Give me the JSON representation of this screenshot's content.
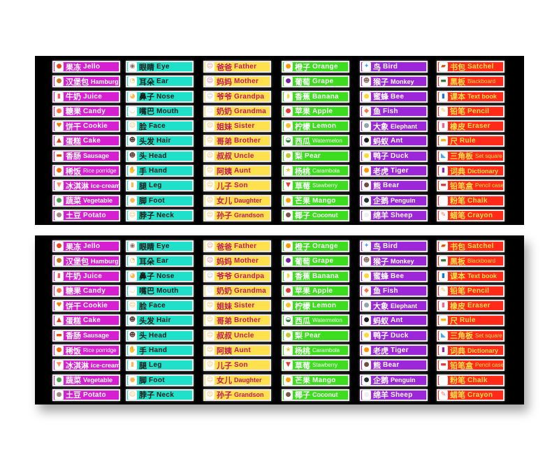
{
  "panels": [
    "top",
    "bottom"
  ],
  "columns": [
    {
      "bg": "#d61fd0",
      "fg": "#ffffff",
      "items": [
        {
          "icon": "jelly-icon",
          "glyph": "●",
          "ic": "#e64a19",
          "zh": "果冻",
          "en": "Jello"
        },
        {
          "icon": "hamburger-icon",
          "glyph": "●",
          "ic": "#c77a1a",
          "zh": "汉堡包",
          "en": "Hamburg",
          "size": "mid"
        },
        {
          "icon": "milk-icon",
          "glyph": "▮",
          "ic": "#ff5a5a",
          "zh": "牛奶",
          "en": "Juice"
        },
        {
          "icon": "candy-icon",
          "glyph": "●",
          "ic": "#ff7043",
          "zh": "糖果",
          "en": "Candy"
        },
        {
          "icon": "cookie-icon",
          "glyph": "♥",
          "ic": "#f57c00",
          "zh": "饼干",
          "en": "Cookie"
        },
        {
          "icon": "cake-icon",
          "glyph": "▲",
          "ic": "#d84315",
          "zh": "蛋糕",
          "en": "Cake"
        },
        {
          "icon": "sausage-icon",
          "glyph": "▬",
          "ic": "#e65100",
          "zh": "香肠",
          "en": "Sausage",
          "size": "mid"
        },
        {
          "icon": "rice-porridge-icon",
          "glyph": "●",
          "ic": "#ef6c00",
          "zh": "稀饭",
          "en": "Rice porridge",
          "size": "small"
        },
        {
          "icon": "ice-cream-icon",
          "glyph": "▼",
          "ic": "#ff8a65",
          "zh": "冰淇淋",
          "en": "ice-cream",
          "size": "mid"
        },
        {
          "icon": "vegetable-icon",
          "glyph": "●",
          "ic": "#43a047",
          "zh": "蔬菜",
          "en": "Vegetable",
          "size": "mid"
        },
        {
          "icon": "potato-icon",
          "glyph": "●",
          "ic": "#a1887f",
          "zh": "土豆",
          "en": "Potato"
        }
      ]
    },
    {
      "bg": "#1fe0c8",
      "fg": "#1a1a1a",
      "items": [
        {
          "icon": "eye-icon",
          "glyph": "◉",
          "ic": "#8d6e63",
          "zh": "眼睛",
          "en": "Eye"
        },
        {
          "icon": "ear-icon",
          "glyph": "◔",
          "ic": "#ffb74d",
          "zh": "耳朵",
          "en": "Ear"
        },
        {
          "icon": "nose-icon",
          "glyph": "◕",
          "ic": "#ffb74d",
          "zh": "鼻子",
          "en": "Nose"
        },
        {
          "icon": "mouth-icon",
          "glyph": "◡",
          "ic": "#ffb74d",
          "zh": "嘴巴",
          "en": "Mouth"
        },
        {
          "icon": "face-icon",
          "glyph": "☺",
          "ic": "#ffb74d",
          "zh": "脸",
          "en": "Face"
        },
        {
          "icon": "hair-icon",
          "glyph": "☻",
          "ic": "#5d4037",
          "zh": "头发",
          "en": "Hair"
        },
        {
          "icon": "head-icon",
          "glyph": "☻",
          "ic": "#5d4037",
          "zh": "头",
          "en": "Head"
        },
        {
          "icon": "hand-icon",
          "glyph": "✋",
          "ic": "#ffb74d",
          "zh": "手",
          "en": "Hand"
        },
        {
          "icon": "leg-icon",
          "glyph": "▮",
          "ic": "#ffb74d",
          "zh": "腿",
          "en": "Leg"
        },
        {
          "icon": "foot-icon",
          "glyph": "●",
          "ic": "#ffb74d",
          "zh": "脚",
          "en": "Foot"
        },
        {
          "icon": "neck-icon",
          "glyph": "☺",
          "ic": "#ffb74d",
          "zh": "脖子",
          "en": "Neck"
        }
      ]
    },
    {
      "bg": "#ffe14d",
      "fg": "#c2185b",
      "items": [
        {
          "icon": "father-icon",
          "glyph": "☺",
          "ic": "#ff8a65",
          "zh": "爸爸",
          "en": "Father"
        },
        {
          "icon": "mother-icon",
          "glyph": "☺",
          "ic": "#f06292",
          "zh": "妈妈",
          "en": "Mother"
        },
        {
          "icon": "grandpa-icon",
          "glyph": "☺",
          "ic": "#bdbdbd",
          "zh": "爷爷",
          "en": "Grandpa"
        },
        {
          "icon": "grandma-icon",
          "glyph": "☺",
          "ic": "#e0e0e0",
          "zh": "奶奶",
          "en": "Grandma"
        },
        {
          "icon": "sister-icon",
          "glyph": "☺",
          "ic": "#ffb74d",
          "zh": "姐妹",
          "en": "Sister"
        },
        {
          "icon": "brother-icon",
          "glyph": "☺",
          "ic": "#ffb74d",
          "zh": "哥弟",
          "en": "Brother"
        },
        {
          "icon": "uncle-icon",
          "glyph": "☺",
          "ic": "#ffb74d",
          "zh": "叔叔",
          "en": "Uncle"
        },
        {
          "icon": "aunt-icon",
          "glyph": "☺",
          "ic": "#ffb74d",
          "zh": "阿姨",
          "en": "Aunt"
        },
        {
          "icon": "son-icon",
          "glyph": "☺",
          "ic": "#ffb74d",
          "zh": "儿子",
          "en": "Son"
        },
        {
          "icon": "daughter-icon",
          "glyph": "☺",
          "ic": "#ffb74d",
          "zh": "女儿",
          "en": "Daughter",
          "size": "mid"
        },
        {
          "icon": "grandson-icon",
          "glyph": "☺",
          "ic": "#ffb74d",
          "zh": "孙子",
          "en": "Grandson",
          "size": "mid"
        }
      ]
    },
    {
      "bg": "#3ddc1e",
      "fg": "#ffffff",
      "items": [
        {
          "icon": "orange-icon",
          "glyph": "●",
          "ic": "#ff9800",
          "zh": "橙子",
          "en": "Orange"
        },
        {
          "icon": "grape-icon",
          "glyph": "●",
          "ic": "#7b1fa2",
          "zh": "葡萄",
          "en": "Grape"
        },
        {
          "icon": "banana-icon",
          "glyph": "◗",
          "ic": "#fdd835",
          "zh": "香蕉",
          "en": "Banana"
        },
        {
          "icon": "apple-icon",
          "glyph": "●",
          "ic": "#e53935",
          "zh": "苹果",
          "en": "Apple"
        },
        {
          "icon": "lemon-icon",
          "glyph": "●",
          "ic": "#fbc02d",
          "zh": "柠檬",
          "en": "Lemon"
        },
        {
          "icon": "watermelon-icon",
          "glyph": "◒",
          "ic": "#2e7d32",
          "zh": "西瓜",
          "en": "Watermelon",
          "size": "small"
        },
        {
          "icon": "pear-icon",
          "glyph": "●",
          "ic": "#c0ca33",
          "zh": "梨",
          "en": "Pear"
        },
        {
          "icon": "carambola-icon",
          "glyph": "★",
          "ic": "#fbc02d",
          "zh": "杨桃",
          "en": "Carambola",
          "size": "small"
        },
        {
          "icon": "strawberry-icon",
          "glyph": "▼",
          "ic": "#e53935",
          "zh": "草莓",
          "en": "Stawberry",
          "size": "small"
        },
        {
          "icon": "mango-icon",
          "glyph": "●",
          "ic": "#ffa000",
          "zh": "芒果",
          "en": "Mango"
        },
        {
          "icon": "coconut-icon",
          "glyph": "●",
          "ic": "#795548",
          "zh": "椰子",
          "en": "Coconut",
          "size": "mid"
        }
      ]
    },
    {
      "bg": "#9c27d8",
      "fg": "#ffffff",
      "items": [
        {
          "icon": "bird-icon",
          "glyph": "✦",
          "ic": "#42a5f5",
          "zh": "鸟",
          "en": "Bird"
        },
        {
          "icon": "monkey-icon",
          "glyph": "☻",
          "ic": "#8d6e63",
          "zh": "猴子",
          "en": "Monkey",
          "size": "mid"
        },
        {
          "icon": "bee-icon",
          "glyph": "●",
          "ic": "#fdd835",
          "zh": "蜜蜂",
          "en": "Bee"
        },
        {
          "icon": "fish-icon",
          "glyph": "◆",
          "ic": "#ff7043",
          "zh": "鱼",
          "en": "Fish"
        },
        {
          "icon": "elephant-icon",
          "glyph": "●",
          "ic": "#90a4ae",
          "zh": "大象",
          "en": "Elephant",
          "size": "mid"
        },
        {
          "icon": "ant-icon",
          "glyph": "●",
          "ic": "#212121",
          "zh": "蚂蚁",
          "en": "Ant"
        },
        {
          "icon": "duck-icon",
          "glyph": "●",
          "ic": "#fdd835",
          "zh": "鸭子",
          "en": "Duck"
        },
        {
          "icon": "tiger-icon",
          "glyph": "●",
          "ic": "#ff9800",
          "zh": "老虎",
          "en": "Tiger"
        },
        {
          "icon": "bear-icon",
          "glyph": "●",
          "ic": "#6d4c41",
          "zh": "熊",
          "en": "Bear"
        },
        {
          "icon": "penguin-icon",
          "glyph": "●",
          "ic": "#263238",
          "zh": "企鹅",
          "en": "Penguin",
          "size": "mid"
        },
        {
          "icon": "sheep-icon",
          "glyph": "●",
          "ic": "#eeeeee",
          "zh": "绵羊",
          "en": "Sheep"
        }
      ]
    },
    {
      "bg": "#ff2a1a",
      "fg": "#ffe14d",
      "items": [
        {
          "icon": "satchel-icon",
          "glyph": "▰",
          "ic": "#e65100",
          "zh": "书包",
          "en": "Satchel"
        },
        {
          "icon": "blackboard-icon",
          "glyph": "▬",
          "ic": "#2e7d32",
          "zh": "黑板",
          "en": "Blackboard",
          "size": "small"
        },
        {
          "icon": "textbook-icon",
          "glyph": "▮",
          "ic": "#1976d2",
          "zh": "课本",
          "en": "Text book",
          "size": "mid"
        },
        {
          "icon": "pencil-icon",
          "glyph": "✎",
          "ic": "#fbc02d",
          "zh": "铅笔",
          "en": "Pencil"
        },
        {
          "icon": "eraser-icon",
          "glyph": "▮",
          "ic": "#f06292",
          "zh": "橡皮",
          "en": "Eraser"
        },
        {
          "icon": "ruler-icon",
          "glyph": "▬",
          "ic": "#ffb300",
          "zh": "尺",
          "en": "Rule"
        },
        {
          "icon": "set-square-icon",
          "glyph": "◣",
          "ic": "#42a5f5",
          "zh": "三角板",
          "en": "Set square",
          "size": "small"
        },
        {
          "icon": "dictionary-icon",
          "glyph": "▮",
          "ic": "#8e24aa",
          "zh": "词典",
          "en": "Dictionary",
          "size": "mid"
        },
        {
          "icon": "pencil-case-icon",
          "glyph": "▬",
          "ic": "#e53935",
          "zh": "铅笔盒",
          "en": "Pencil case",
          "size": "small"
        },
        {
          "icon": "chalk-icon",
          "glyph": "▮",
          "ic": "#fafafa",
          "zh": "粉笔",
          "en": "Chalk"
        },
        {
          "icon": "crayon-icon",
          "glyph": "✎",
          "ic": "#ff7043",
          "zh": "蜡笔",
          "en": "Crayon"
        }
      ]
    }
  ]
}
